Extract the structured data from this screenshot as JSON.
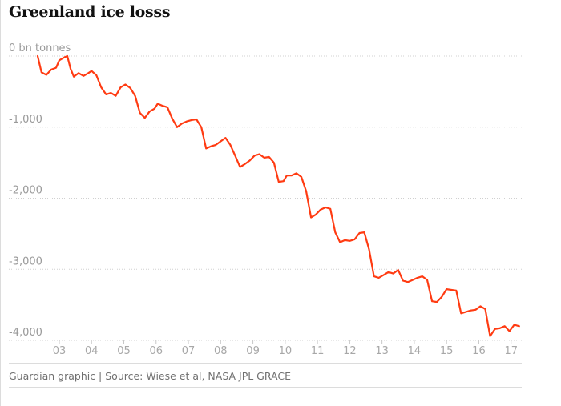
{
  "title": "Greenland ice losss",
  "source": "Guardian graphic | Source: Wiese et al, NASA JPL GRACE",
  "colors": {
    "line": "#ff3b12",
    "grid": "#d0d0d0",
    "axis_text": "#9a9a9a"
  },
  "chart_data": {
    "type": "line",
    "title": "Greenland ice losss",
    "y_unit": "bn tonnes",
    "ylim": [
      -4000,
      0
    ],
    "xlim": [
      2002.33,
      2017.33
    ],
    "grid": "horizontal dotted",
    "y_ticks": [
      {
        "value": 0,
        "label": "0 bn tonnes"
      },
      {
        "value": -1000,
        "label": "-1,000"
      },
      {
        "value": -2000,
        "label": "-2,000"
      },
      {
        "value": -3000,
        "label": "-3,000"
      },
      {
        "value": -4000,
        "label": "-4,000"
      }
    ],
    "x_ticks": [
      {
        "value": 2003,
        "label": "03"
      },
      {
        "value": 2004,
        "label": "04"
      },
      {
        "value": 2005,
        "label": "05"
      },
      {
        "value": 2006,
        "label": "06"
      },
      {
        "value": 2007,
        "label": "07"
      },
      {
        "value": 2008,
        "label": "08"
      },
      {
        "value": 2009,
        "label": "09"
      },
      {
        "value": 2010,
        "label": "10"
      },
      {
        "value": 2011,
        "label": "11"
      },
      {
        "value": 2012,
        "label": "12"
      },
      {
        "value": 2013,
        "label": "13"
      },
      {
        "value": 2014,
        "label": "14"
      },
      {
        "value": 2015,
        "label": "15"
      },
      {
        "value": 2016,
        "label": "16"
      },
      {
        "value": 2017,
        "label": "17"
      }
    ],
    "series": [
      {
        "points": [
          [
            2002.33,
            0
          ],
          [
            2002.45,
            -230
          ],
          [
            2002.6,
            -265
          ],
          [
            2002.75,
            -190
          ],
          [
            2002.9,
            -165
          ],
          [
            2003.0,
            -60
          ],
          [
            2003.15,
            -20
          ],
          [
            2003.25,
            0
          ],
          [
            2003.35,
            -180
          ],
          [
            2003.45,
            -290
          ],
          [
            2003.6,
            -240
          ],
          [
            2003.75,
            -280
          ],
          [
            2003.9,
            -240
          ],
          [
            2004.0,
            -210
          ],
          [
            2004.15,
            -270
          ],
          [
            2004.3,
            -440
          ],
          [
            2004.45,
            -540
          ],
          [
            2004.6,
            -520
          ],
          [
            2004.75,
            -560
          ],
          [
            2004.9,
            -440
          ],
          [
            2005.05,
            -400
          ],
          [
            2005.2,
            -450
          ],
          [
            2005.35,
            -560
          ],
          [
            2005.5,
            -800
          ],
          [
            2005.65,
            -870
          ],
          [
            2005.8,
            -780
          ],
          [
            2005.95,
            -740
          ],
          [
            2006.05,
            -670
          ],
          [
            2006.2,
            -700
          ],
          [
            2006.35,
            -720
          ],
          [
            2006.5,
            -880
          ],
          [
            2006.65,
            -1000
          ],
          [
            2006.8,
            -950
          ],
          [
            2006.95,
            -920
          ],
          [
            2007.1,
            -900
          ],
          [
            2007.25,
            -890
          ],
          [
            2007.4,
            -1000
          ],
          [
            2007.55,
            -1300
          ],
          [
            2007.7,
            -1270
          ],
          [
            2007.85,
            -1250
          ],
          [
            2008.0,
            -1200
          ],
          [
            2008.15,
            -1150
          ],
          [
            2008.3,
            -1250
          ],
          [
            2008.45,
            -1400
          ],
          [
            2008.6,
            -1560
          ],
          [
            2008.75,
            -1520
          ],
          [
            2008.9,
            -1470
          ],
          [
            2009.05,
            -1400
          ],
          [
            2009.2,
            -1380
          ],
          [
            2009.35,
            -1430
          ],
          [
            2009.5,
            -1420
          ],
          [
            2009.65,
            -1500
          ],
          [
            2009.8,
            -1770
          ],
          [
            2009.95,
            -1760
          ],
          [
            2010.05,
            -1680
          ],
          [
            2010.2,
            -1680
          ],
          [
            2010.35,
            -1650
          ],
          [
            2010.5,
            -1700
          ],
          [
            2010.65,
            -1900
          ],
          [
            2010.8,
            -2270
          ],
          [
            2010.95,
            -2230
          ],
          [
            2011.1,
            -2160
          ],
          [
            2011.25,
            -2130
          ],
          [
            2011.4,
            -2150
          ],
          [
            2011.55,
            -2480
          ],
          [
            2011.7,
            -2620
          ],
          [
            2011.85,
            -2590
          ],
          [
            2012.0,
            -2600
          ],
          [
            2012.15,
            -2580
          ],
          [
            2012.3,
            -2490
          ],
          [
            2012.45,
            -2480
          ],
          [
            2012.6,
            -2720
          ],
          [
            2012.75,
            -3100
          ],
          [
            2012.9,
            -3120
          ],
          [
            2013.05,
            -3080
          ],
          [
            2013.2,
            -3040
          ],
          [
            2013.35,
            -3060
          ],
          [
            2013.5,
            -3010
          ],
          [
            2013.65,
            -3160
          ],
          [
            2013.8,
            -3180
          ],
          [
            2013.95,
            -3150
          ],
          [
            2014.1,
            -3120
          ],
          [
            2014.25,
            -3100
          ],
          [
            2014.4,
            -3150
          ],
          [
            2014.55,
            -3450
          ],
          [
            2014.7,
            -3460
          ],
          [
            2014.85,
            -3390
          ],
          [
            2015.0,
            -3280
          ],
          [
            2015.15,
            -3290
          ],
          [
            2015.3,
            -3300
          ],
          [
            2015.45,
            -3620
          ],
          [
            2015.6,
            -3600
          ],
          [
            2015.75,
            -3580
          ],
          [
            2015.9,
            -3570
          ],
          [
            2016.05,
            -3520
          ],
          [
            2016.2,
            -3560
          ],
          [
            2016.35,
            -3940
          ],
          [
            2016.5,
            -3840
          ],
          [
            2016.65,
            -3830
          ],
          [
            2016.8,
            -3800
          ],
          [
            2016.95,
            -3870
          ],
          [
            2017.1,
            -3780
          ],
          [
            2017.25,
            -3800
          ]
        ]
      }
    ]
  }
}
